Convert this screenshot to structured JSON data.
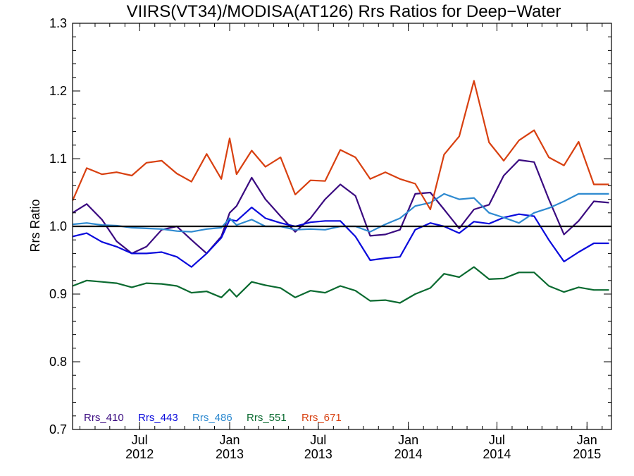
{
  "chart_data": {
    "type": "line",
    "title": "VIIRS(VT34)/MODISA(AT126)  Rrs Ratios for Deep−Water",
    "xlabel": "",
    "ylabel": "Rrs Ratio",
    "ylim": [
      0.7,
      1.3
    ],
    "yticks": [
      {
        "value": 0.7,
        "label": "0.7"
      },
      {
        "value": 0.8,
        "label": "0.8"
      },
      {
        "value": 0.9,
        "label": "0.9"
      },
      {
        "value": 1.0,
        "label": "1.0"
      },
      {
        "value": 1.1,
        "label": "1.1"
      },
      {
        "value": 1.2,
        "label": "1.2"
      },
      {
        "value": 1.3,
        "label": "1.3"
      }
    ],
    "xlim": [
      "2012-02-15",
      "2015-02-20"
    ],
    "xticks": [
      {
        "date": "2012-07-01",
        "line1": "Jul",
        "line2": "2012"
      },
      {
        "date": "2013-01-01",
        "line1": "Jan",
        "line2": "2013"
      },
      {
        "date": "2013-07-01",
        "line1": "Jul",
        "line2": "2013"
      },
      {
        "date": "2014-01-01",
        "line1": "Jan",
        "line2": "2014"
      },
      {
        "date": "2014-07-01",
        "line1": "Jul",
        "line2": "2014"
      },
      {
        "date": "2015-01-01",
        "line1": "Jan",
        "line2": "2015"
      }
    ],
    "reference_line": 1.0,
    "grid": false,
    "legend_position": "bottom-left",
    "x": [
      "2012-02-15",
      "2012-03-15",
      "2012-04-15",
      "2012-05-15",
      "2012-06-15",
      "2012-07-15",
      "2012-08-15",
      "2012-09-15",
      "2012-10-15",
      "2012-11-15",
      "2012-12-15",
      "2013-01-01",
      "2013-01-15",
      "2013-02-15",
      "2013-03-15",
      "2013-04-15",
      "2013-05-15",
      "2013-06-15",
      "2013-07-15",
      "2013-08-15",
      "2013-09-15",
      "2013-10-15",
      "2013-11-15",
      "2013-12-15",
      "2014-01-15",
      "2014-02-15",
      "2014-03-15",
      "2014-04-15",
      "2014-05-15",
      "2014-06-15",
      "2014-07-15",
      "2014-08-15",
      "2014-09-15",
      "2014-10-15",
      "2014-11-15",
      "2014-12-15",
      "2015-01-15",
      "2015-02-15"
    ],
    "series": [
      {
        "name": "Rrs_410",
        "color": "#3a0a80",
        "values": [
          1.02,
          1.033,
          1.01,
          0.978,
          0.96,
          0.97,
          0.995,
          1.0,
          0.98,
          0.96,
          0.985,
          1.02,
          1.03,
          1.072,
          1.04,
          1.015,
          0.992,
          1.012,
          1.04,
          1.062,
          1.045,
          0.986,
          0.988,
          0.995,
          1.048,
          1.05,
          1.025,
          0.997,
          1.025,
          1.032,
          1.075,
          1.098,
          1.095,
          1.04,
          0.988,
          1.008,
          1.037,
          1.035
        ]
      },
      {
        "name": "Rrs_443",
        "color": "#0a0adc",
        "values": [
          0.985,
          0.99,
          0.977,
          0.97,
          0.96,
          0.96,
          0.962,
          0.955,
          0.94,
          0.96,
          0.983,
          1.01,
          1.008,
          1.028,
          1.012,
          1.005,
          1.0,
          1.006,
          1.008,
          1.008,
          0.985,
          0.95,
          0.953,
          0.955,
          0.995,
          1.005,
          1.0,
          0.99,
          1.007,
          1.004,
          1.013,
          1.018,
          1.015,
          0.98,
          0.948,
          0.962,
          0.975,
          0.975
        ]
      },
      {
        "name": "Rrs_486",
        "color": "#2e8ad0",
        "values": [
          1.003,
          1.005,
          1.002,
          1.001,
          0.998,
          0.997,
          0.996,
          0.993,
          0.992,
          0.996,
          0.998,
          1.012,
          1.002,
          1.01,
          1.0,
          1.0,
          0.995,
          0.996,
          0.995,
          1.0,
          1.0,
          0.992,
          1.003,
          1.012,
          1.03,
          1.035,
          1.048,
          1.04,
          1.042,
          1.02,
          1.013,
          1.005,
          1.02,
          1.027,
          1.037,
          1.048,
          1.048,
          1.048
        ]
      },
      {
        "name": "Rrs_551",
        "color": "#0a6a30",
        "values": [
          0.912,
          0.92,
          0.918,
          0.916,
          0.91,
          0.916,
          0.915,
          0.912,
          0.902,
          0.904,
          0.895,
          0.907,
          0.896,
          0.918,
          0.913,
          0.909,
          0.895,
          0.905,
          0.902,
          0.912,
          0.905,
          0.89,
          0.891,
          0.887,
          0.9,
          0.909,
          0.93,
          0.925,
          0.94,
          0.922,
          0.923,
          0.932,
          0.932,
          0.912,
          0.903,
          0.91,
          0.906,
          0.906
        ]
      },
      {
        "name": "Rrs_671",
        "color": "#d84010",
        "values": [
          1.038,
          1.086,
          1.077,
          1.08,
          1.075,
          1.094,
          1.097,
          1.078,
          1.066,
          1.107,
          1.07,
          1.13,
          1.077,
          1.112,
          1.088,
          1.102,
          1.047,
          1.068,
          1.067,
          1.113,
          1.102,
          1.07,
          1.08,
          1.07,
          1.063,
          1.025,
          1.106,
          1.133,
          1.215,
          1.124,
          1.097,
          1.127,
          1.142,
          1.102,
          1.09,
          1.125,
          1.062,
          1.062
        ]
      }
    ]
  }
}
